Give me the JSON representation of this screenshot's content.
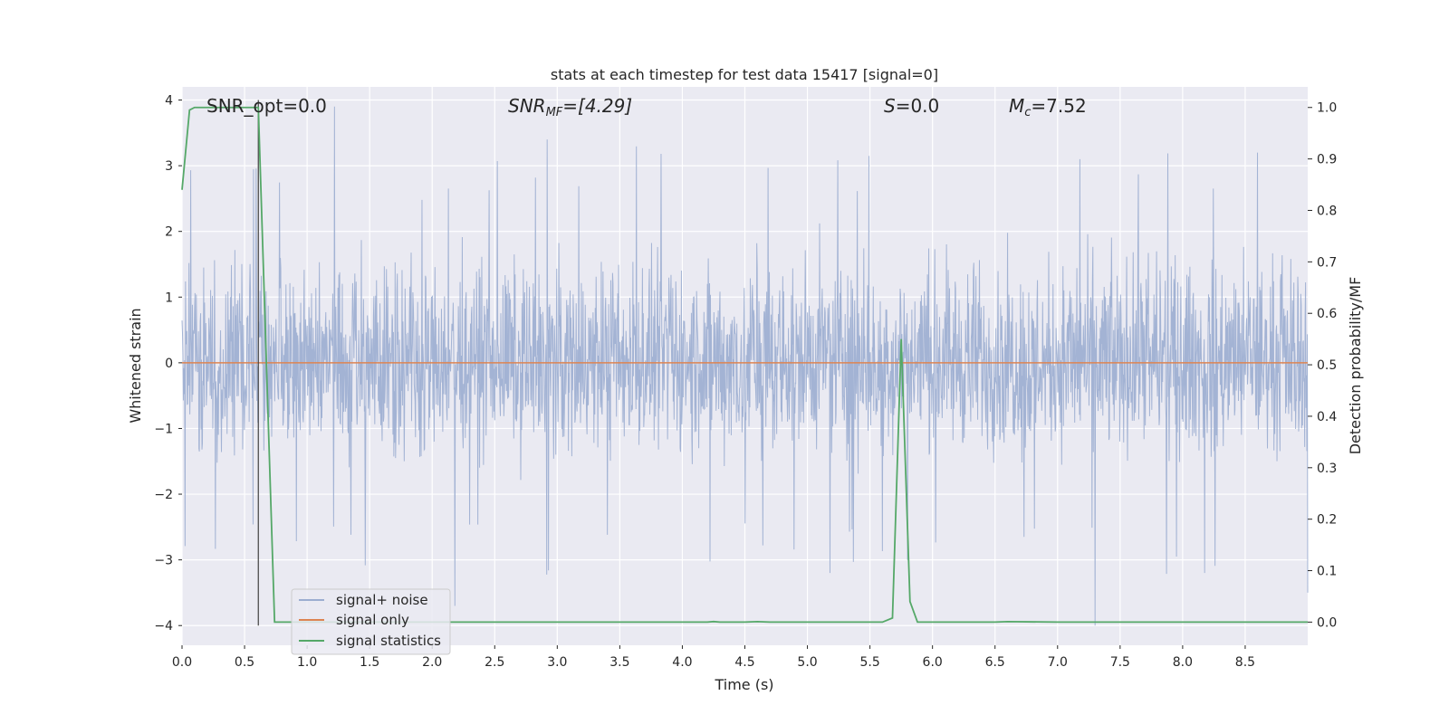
{
  "chart_data": {
    "type": "line",
    "title": "stats at each timestep for test data 15417 [signal=0]",
    "xlabel": "Time (s)",
    "ylabel": "Whitened strain",
    "y2label": "Detection probability/MF",
    "xlim": [
      0,
      9.0
    ],
    "ylim": [
      -4.3,
      4.2
    ],
    "y2lim": [
      -0.045,
      1.04
    ],
    "x_ticks": [
      "0.0",
      "0.5",
      "1.0",
      "1.5",
      "2.0",
      "2.5",
      "3.0",
      "3.5",
      "4.0",
      "4.5",
      "5.0",
      "5.5",
      "6.0",
      "6.5",
      "7.0",
      "7.5",
      "8.0",
      "8.5"
    ],
    "y_ticks": [
      "−4",
      "−3",
      "−2",
      "−1",
      "0",
      "1",
      "2",
      "3",
      "4"
    ],
    "y2_ticks": [
      "0.0",
      "0.1",
      "0.2",
      "0.3",
      "0.4",
      "0.5",
      "0.6",
      "0.7",
      "0.8",
      "0.9",
      "1.0"
    ],
    "grid": true,
    "legend_position": "lower-left",
    "annotations": {
      "snr_opt": "SNR_opt=0.0",
      "snr_mf_label": "SNR",
      "snr_mf_sub": "MF",
      "snr_mf_value": "=[4.29]",
      "s_label": "S",
      "s_value": "=0.0",
      "mc_label": "M",
      "mc_sub": "c",
      "mc_value": "=7.52"
    },
    "marker_line_x": 0.61,
    "series": [
      {
        "name": "signal+ noise",
        "color": "#9badd0",
        "kind": "noise",
        "envelope_typical": [
          -1.9,
          2.2
        ],
        "envelope_extreme": [
          -4.0,
          3.9
        ],
        "spikes": [
          {
            "x": 1.22,
            "y": 3.9
          },
          {
            "x": 2.92,
            "y": 3.4
          },
          {
            "x": 2.18,
            "y": -3.7
          },
          {
            "x": 7.3,
            "y": -4.0
          },
          {
            "x": 5.18,
            "y": -3.2
          },
          {
            "x": 8.6,
            "y": 3.2
          },
          {
            "x": 7.18,
            "y": 3.1
          },
          {
            "x": 5.8,
            "y": -3.0
          },
          {
            "x": 9.0,
            "y": -3.5
          }
        ]
      },
      {
        "name": "signal only",
        "color": "#dd8452",
        "x": [
          0,
          9.0
        ],
        "y": [
          0,
          0
        ]
      },
      {
        "name": "signal statistics",
        "color": "#55a868",
        "axis": "right",
        "x": [
          0.0,
          0.06,
          0.1,
          0.61,
          0.74,
          4.2,
          4.25,
          4.3,
          4.5,
          4.6,
          4.7,
          5.6,
          5.68,
          5.75,
          5.82,
          5.88,
          6.5,
          6.6,
          7.0,
          9.0
        ],
        "y": [
          0.84,
          0.995,
          1.0,
          1.0,
          0.0,
          0.0,
          0.001,
          0.0,
          0.0,
          0.001,
          0.0,
          0.0,
          0.008,
          0.55,
          0.04,
          0.0,
          0.0,
          0.001,
          0.0,
          0.0
        ]
      }
    ]
  }
}
